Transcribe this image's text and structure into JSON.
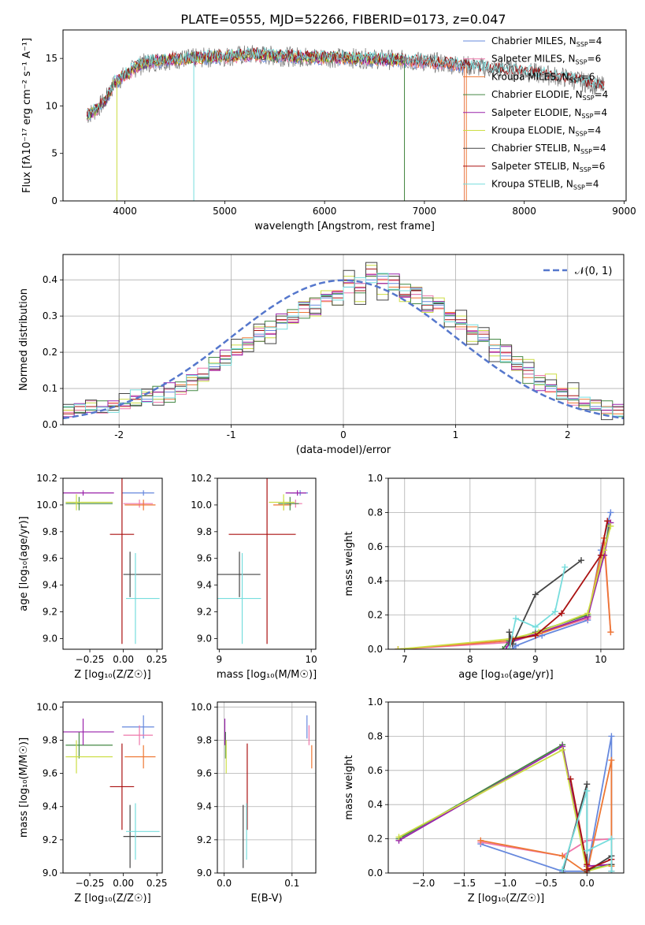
{
  "title": "PLATE=0555, MJD=52266, FIBERID=0173, z=0.047",
  "colors": {
    "chabrier_miles": "#6688dd",
    "salpeter_miles": "#ee77aa",
    "kroupa_miles": "#ee7733",
    "chabrier_elodie": "#448844",
    "salpeter_elodie": "#9922aa",
    "kroupa_elodie": "#ccdd44",
    "chabrier_stelib": "#444444",
    "salpeter_stelib": "#aa1111",
    "kroupa_stelib": "#77dddd",
    "data": "#777777",
    "gaussian": "#5577cc",
    "grid": "#b0b0b0"
  },
  "chart_data": [
    {
      "type": "line",
      "xlabel": "wavelength [Angstrom, rest frame]",
      "ylabel": "Flux [fλ10⁻¹⁷ erg cm⁻² s⁻¹ A⁻¹]",
      "xlim": [
        3380,
        9020
      ],
      "ylim": [
        0,
        18
      ],
      "xticks": [
        4000,
        5000,
        6000,
        7000,
        8000,
        9000
      ],
      "yticks": [
        0,
        5,
        10,
        15
      ],
      "grid": false,
      "legend_position": "right",
      "legend": [
        {
          "label": "Chabrier MILES, N",
          "sub": "SSP",
          "suffix": "=4",
          "color": "#6688dd"
        },
        {
          "label": "Salpeter MILES, N",
          "sub": "SSP",
          "suffix": "=6",
          "color": "#ee77aa"
        },
        {
          "label": "Kroupa MILES, N",
          "sub": "SSP",
          "suffix": "=6",
          "color": "#ee7733"
        },
        {
          "label": "Chabrier ELODIE, N",
          "sub": "SSP",
          "suffix": "=4",
          "color": "#448844"
        },
        {
          "label": "Salpeter ELODIE, N",
          "sub": "SSP",
          "suffix": "=4",
          "color": "#9922aa"
        },
        {
          "label": "Kroupa ELODIE, N",
          "sub": "SSP",
          "suffix": "=4",
          "color": "#ccdd44"
        },
        {
          "label": "Chabrier STELIB, N",
          "sub": "SSP",
          "suffix": "=4",
          "color": "#444444"
        },
        {
          "label": "Salpeter STELIB, N",
          "sub": "SSP",
          "suffix": "=6",
          "color": "#aa1111"
        },
        {
          "label": "Kroupa STELIB, N",
          "sub": "SSP",
          "suffix": "=4",
          "color": "#77dddd"
        }
      ],
      "series": [
        {
          "wavelength": [
            3620,
            3700,
            3800,
            3900,
            4000,
            4100,
            4200,
            4300,
            4500,
            4700,
            5000,
            5300,
            5600,
            6000,
            6400,
            6800,
            7200,
            7600,
            8000,
            8400,
            8800
          ],
          "flux": [
            9.0,
            9.5,
            10.5,
            12.5,
            13.2,
            14.0,
            14.5,
            14.7,
            14.9,
            15.0,
            15.2,
            15.4,
            15.2,
            15.1,
            15.0,
            14.8,
            14.5,
            14.0,
            13.6,
            13.0,
            12.0
          ]
        }
      ]
    },
    {
      "type": "histogram",
      "xlabel": "(data-model)/error",
      "ylabel": "Normed distribution",
      "xlim": [
        -2.5,
        2.5
      ],
      "ylim": [
        0,
        0.47
      ],
      "xticks": [
        -2,
        -1,
        0,
        1,
        2
      ],
      "yticks": [
        0.0,
        0.1,
        0.2,
        0.3,
        0.4
      ],
      "grid": true,
      "legend": [
        {
          "label": "𝒩(0, 1)",
          "style": "dashed"
        }
      ],
      "bin_width": 0.1,
      "bin_start": -2.5,
      "series": [
        {
          "name": "Chabrier MILES",
          "values": [
            0.05,
            0.04,
            0.05,
            0.04,
            0.05,
            0.06,
            0.08,
            0.07,
            0.07,
            0.09,
            0.1,
            0.12,
            0.14,
            0.16,
            0.18,
            0.21,
            0.22,
            0.25,
            0.26,
            0.28,
            0.3,
            0.32,
            0.33,
            0.35,
            0.36,
            0.38,
            0.39,
            0.4,
            0.41,
            0.39,
            0.37,
            0.36,
            0.34,
            0.33,
            0.3,
            0.28,
            0.26,
            0.24,
            0.21,
            0.19,
            0.17,
            0.14,
            0.12,
            0.1,
            0.09,
            0.07,
            0.06,
            0.05,
            0.04,
            0.04
          ]
        },
        {
          "name": "Kroupa MILES",
          "values": [
            0.04,
            0.05,
            0.04,
            0.05,
            0.06,
            0.05,
            0.07,
            0.08,
            0.09,
            0.07,
            0.11,
            0.11,
            0.13,
            0.17,
            0.19,
            0.2,
            0.24,
            0.23,
            0.27,
            0.29,
            0.31,
            0.31,
            0.35,
            0.34,
            0.37,
            0.39,
            0.38,
            0.41,
            0.4,
            0.38,
            0.38,
            0.35,
            0.35,
            0.32,
            0.31,
            0.27,
            0.27,
            0.23,
            0.22,
            0.18,
            0.18,
            0.13,
            0.13,
            0.09,
            0.1,
            0.06,
            0.07,
            0.04,
            0.05,
            0.03
          ]
        },
        {
          "name": "Salpeter STELIB",
          "values": [
            0.03,
            0.05,
            0.05,
            0.05,
            0.05,
            0.06,
            0.07,
            0.08,
            0.09,
            0.1,
            0.1,
            0.13,
            0.14,
            0.15,
            0.19,
            0.2,
            0.22,
            0.26,
            0.25,
            0.29,
            0.29,
            0.33,
            0.32,
            0.36,
            0.35,
            0.4,
            0.37,
            0.43,
            0.39,
            0.4,
            0.36,
            0.37,
            0.33,
            0.34,
            0.29,
            0.29,
            0.25,
            0.25,
            0.2,
            0.2,
            0.16,
            0.15,
            0.11,
            0.11,
            0.08,
            0.08,
            0.05,
            0.06,
            0.04,
            0.04
          ]
        },
        {
          "name": "Kroupa ELODIE",
          "values": [
            0.04,
            0.04,
            0.06,
            0.05,
            0.04,
            0.07,
            0.06,
            0.09,
            0.07,
            0.1,
            0.09,
            0.13,
            0.12,
            0.17,
            0.17,
            0.22,
            0.21,
            0.27,
            0.24,
            0.3,
            0.28,
            0.34,
            0.3,
            0.37,
            0.33,
            0.41,
            0.34,
            0.44,
            0.36,
            0.41,
            0.34,
            0.38,
            0.31,
            0.35,
            0.27,
            0.3,
            0.23,
            0.26,
            0.19,
            0.22,
            0.15,
            0.18,
            0.11,
            0.14,
            0.07,
            0.1,
            0.05,
            0.06,
            0.03,
            0.05
          ]
        }
      ]
    },
    {
      "type": "errorbar",
      "xlabel": "Z [log₁₀(Z/Z☉)]",
      "ylabel": "age  [log₁₀(age/yr)]",
      "xlim": [
        -0.45,
        0.29
      ],
      "ylim": [
        8.92,
        10.2
      ],
      "xticks": [
        -0.25,
        0.0,
        0.25
      ],
      "yticks": [
        9.0,
        9.2,
        9.4,
        9.6,
        9.8,
        10.0,
        10.2
      ]
    },
    {
      "type": "errorbar",
      "xlabel": "mass [log₁₀(M/M☉)]",
      "ylabel": "",
      "xlim": [
        8.98,
        10.05
      ],
      "ylim": [
        8.92,
        10.2
      ],
      "xticks": [
        9,
        10
      ],
      "yticks": [
        9.0,
        9.2,
        9.4,
        9.6,
        9.8,
        10.0,
        10.2
      ]
    },
    {
      "type": "line",
      "xlabel": "age  [log₁₀(age/yr)]",
      "ylabel": "mass weight",
      "xlim": [
        6.75,
        10.35
      ],
      "ylim": [
        0,
        1
      ],
      "xticks": [
        7,
        8,
        9,
        10
      ],
      "yticks": [
        0.0,
        0.2,
        0.4,
        0.6,
        0.8,
        1.0
      ],
      "grid": true
    },
    {
      "type": "errorbar",
      "xlabel": "Z [log₁₀(Z/Z☉)]",
      "ylabel": "mass [log₁₀(M/M☉)]",
      "xlim": [
        -0.45,
        0.29
      ],
      "ylim": [
        9.0,
        10.03
      ],
      "xticks": [
        -0.25,
        0.0,
        0.25
      ],
      "yticks": [
        9.0,
        9.2,
        9.4,
        9.6,
        9.8,
        10.0
      ]
    },
    {
      "type": "errorbar",
      "xlabel": "E(B-V)",
      "ylabel": "",
      "xlim": [
        -0.01,
        0.135
      ],
      "ylim": [
        9.0,
        10.03
      ],
      "xticks": [
        0.0,
        0.1
      ],
      "yticks": [
        9.0,
        9.2,
        9.4,
        9.6,
        9.8,
        10.0
      ],
      "grid": true
    },
    {
      "type": "line",
      "xlabel": "Z [log₁₀(Z/Z☉)]",
      "ylabel": "mass weight",
      "xlim": [
        -2.43,
        0.45
      ],
      "ylim": [
        0,
        1
      ],
      "xticks": [
        -2.0,
        -1.5,
        -1.0,
        -0.5,
        0.0
      ],
      "yticks": [
        0.0,
        0.2,
        0.4,
        0.6,
        0.8,
        1.0
      ],
      "grid": true
    }
  ],
  "fits": [
    {
      "key": "chabrier_miles",
      "Z": 0.15,
      "Zerr": [
        -0.01,
        0.23
      ],
      "age": 10.09,
      "ageerr": 0.02,
      "mass": 9.88,
      "masserr": 0.07,
      "ebv": 0.122,
      "ebverr": 0.1,
      "age_w": [
        [
          8.65,
          0.0
        ],
        [
          8.7,
          0.02
        ],
        [
          9.1,
          0.08
        ],
        [
          9.8,
          0.17
        ],
        [
          10.0,
          0.58
        ],
        [
          10.15,
          0.8
        ]
      ],
      "Z_w": [
        [
          -1.3,
          0.17
        ],
        [
          -0.3,
          0.01
        ],
        [
          0.0,
          0.01
        ],
        [
          0.3,
          0.8
        ],
        [
          0.3,
          0.01
        ]
      ]
    },
    {
      "key": "salpeter_miles",
      "Z": 0.12,
      "Zerr": [
        0.0,
        0.22
      ],
      "age": 10.01,
      "ageerr": 0.03,
      "mass": 9.83,
      "masserr": 0.06,
      "ebv": 0.125,
      "ebverr": 0.12,
      "age_w": [
        [
          6.9,
          0.0
        ],
        [
          8.6,
          0.04
        ],
        [
          9.05,
          0.09
        ],
        [
          9.8,
          0.18
        ],
        [
          10.05,
          0.62
        ],
        [
          10.15,
          0.1
        ]
      ],
      "Z_w": [
        [
          -1.3,
          0.18
        ],
        [
          -0.3,
          0.1
        ],
        [
          0.0,
          0.19
        ],
        [
          0.3,
          0.2
        ],
        [
          0.3,
          0.05
        ]
      ]
    },
    {
      "key": "kroupa_miles",
      "Z": 0.15,
      "Zerr": [
        0.01,
        0.24
      ],
      "age": 10.0,
      "ageerr": 0.04,
      "mass": 9.7,
      "masserr": 0.07,
      "ebv": 0.129,
      "ebverr": 0.1,
      "age_w": [
        [
          6.9,
          0.0
        ],
        [
          8.6,
          0.05
        ],
        [
          9.0,
          0.08
        ],
        [
          9.8,
          0.19
        ],
        [
          10.05,
          0.65
        ],
        [
          10.15,
          0.1
        ]
      ],
      "Z_w": [
        [
          -1.3,
          0.19
        ],
        [
          -0.3,
          0.1
        ],
        [
          0.0,
          0.0
        ],
        [
          0.3,
          0.66
        ],
        [
          0.3,
          0.04
        ]
      ]
    },
    {
      "key": "chabrier_elodie",
      "Z": -0.33,
      "Zerr": [
        -0.43,
        -0.08
      ],
      "age": 10.01,
      "ageerr": 0.05,
      "mass": 9.77,
      "masserr": 0.08,
      "ebv": 0.002,
      "ebverr": 0.1,
      "age_w": [
        [
          8.5,
          0.0
        ],
        [
          8.6,
          0.05
        ],
        [
          9.0,
          0.1
        ],
        [
          9.8,
          0.2
        ],
        [
          10.05,
          0.55
        ],
        [
          10.12,
          0.72
        ]
      ],
      "Z_w": [
        [
          -2.3,
          0.2
        ],
        [
          -0.3,
          0.75
        ],
        [
          0.0,
          0.02
        ],
        [
          0.3,
          0.05
        ]
      ]
    },
    {
      "key": "salpeter_elodie",
      "Z": -0.3,
      "Zerr": [
        -0.45,
        -0.07
      ],
      "age": 10.09,
      "ageerr": 0.02,
      "mass": 9.85,
      "masserr": 0.08,
      "ebv": 0.001,
      "ebverr": 0.08,
      "age_w": [
        [
          8.55,
          0.0
        ],
        [
          8.6,
          0.04
        ],
        [
          9.0,
          0.09
        ],
        [
          9.8,
          0.19
        ],
        [
          10.05,
          0.55
        ],
        [
          10.15,
          0.74
        ]
      ],
      "Z_w": [
        [
          -2.3,
          0.19
        ],
        [
          -0.3,
          0.74
        ],
        [
          0.0,
          0.04
        ],
        [
          0.3,
          0.05
        ]
      ]
    },
    {
      "key": "kroupa_elodie",
      "Z": -0.35,
      "Zerr": [
        -0.43,
        -0.08
      ],
      "age": 10.02,
      "ageerr": 0.06,
      "mass": 9.7,
      "masserr": 0.1,
      "ebv": 0.003,
      "ebverr": 0.12,
      "age_w": [
        [
          6.9,
          0.0
        ],
        [
          8.6,
          0.06
        ],
        [
          9.05,
          0.1
        ],
        [
          9.8,
          0.21
        ],
        [
          10.05,
          0.58
        ],
        [
          10.15,
          0.72
        ]
      ],
      "Z_w": [
        [
          -2.3,
          0.21
        ],
        [
          -0.3,
          0.72
        ],
        [
          0.0,
          0.01
        ],
        [
          0.3,
          0.05
        ]
      ]
    },
    {
      "key": "chabrier_stelib",
      "Z": 0.05,
      "Zerr": [
        0.0,
        0.28
      ],
      "age": 9.48,
      "ageerr": 0.17,
      "mass": 9.22,
      "masserr": 0.19,
      "ebv": 0.028,
      "ebverr": 0.19,
      "age_w": [
        [
          8.6,
          0.0
        ],
        [
          8.6,
          0.1
        ],
        [
          8.65,
          0.03
        ],
        [
          9.0,
          0.32
        ],
        [
          9.7,
          0.52
        ]
      ],
      "Z_w": [
        [
          -0.3,
          0.0
        ],
        [
          0.0,
          0.52
        ],
        [
          0.0,
          0.01
        ],
        [
          0.3,
          0.1
        ],
        [
          0.3,
          0.05
        ]
      ]
    },
    {
      "key": "salpeter_stelib",
      "Z": -0.01,
      "Zerr": [
        -0.1,
        0.08
      ],
      "age": 9.78,
      "ageerr": 0.82,
      "mass": 9.52,
      "masserr": 0.26,
      "ebv": 0.034,
      "ebverr": 0.16,
      "age_w": [
        [
          8.6,
          0.0
        ],
        [
          8.65,
          0.06
        ],
        [
          9.0,
          0.08
        ],
        [
          9.4,
          0.21
        ],
        [
          10.0,
          0.55
        ],
        [
          10.1,
          0.75
        ]
      ],
      "Z_w": [
        [
          -0.2,
          0.55
        ],
        [
          0.0,
          0.05
        ],
        [
          0.0,
          0.02
        ],
        [
          0.3,
          0.08
        ],
        [
          0.3,
          0.01
        ]
      ]
    },
    {
      "key": "kroupa_stelib",
      "Z": 0.09,
      "Zerr": [
        0.02,
        0.27
      ],
      "age": 9.3,
      "ageerr": 0.34,
      "mass": 9.25,
      "masserr": 0.17,
      "ebv": 0.033,
      "ebverr": 0.16,
      "age_w": [
        [
          8.6,
          0.0
        ],
        [
          8.7,
          0.18
        ],
        [
          9.0,
          0.13
        ],
        [
          9.3,
          0.22
        ],
        [
          9.45,
          0.48
        ]
      ],
      "Z_w": [
        [
          -0.3,
          0.02
        ],
        [
          0.0,
          0.48
        ],
        [
          0.0,
          0.13
        ],
        [
          0.3,
          0.2
        ],
        [
          0.3,
          0.01
        ]
      ]
    }
  ]
}
